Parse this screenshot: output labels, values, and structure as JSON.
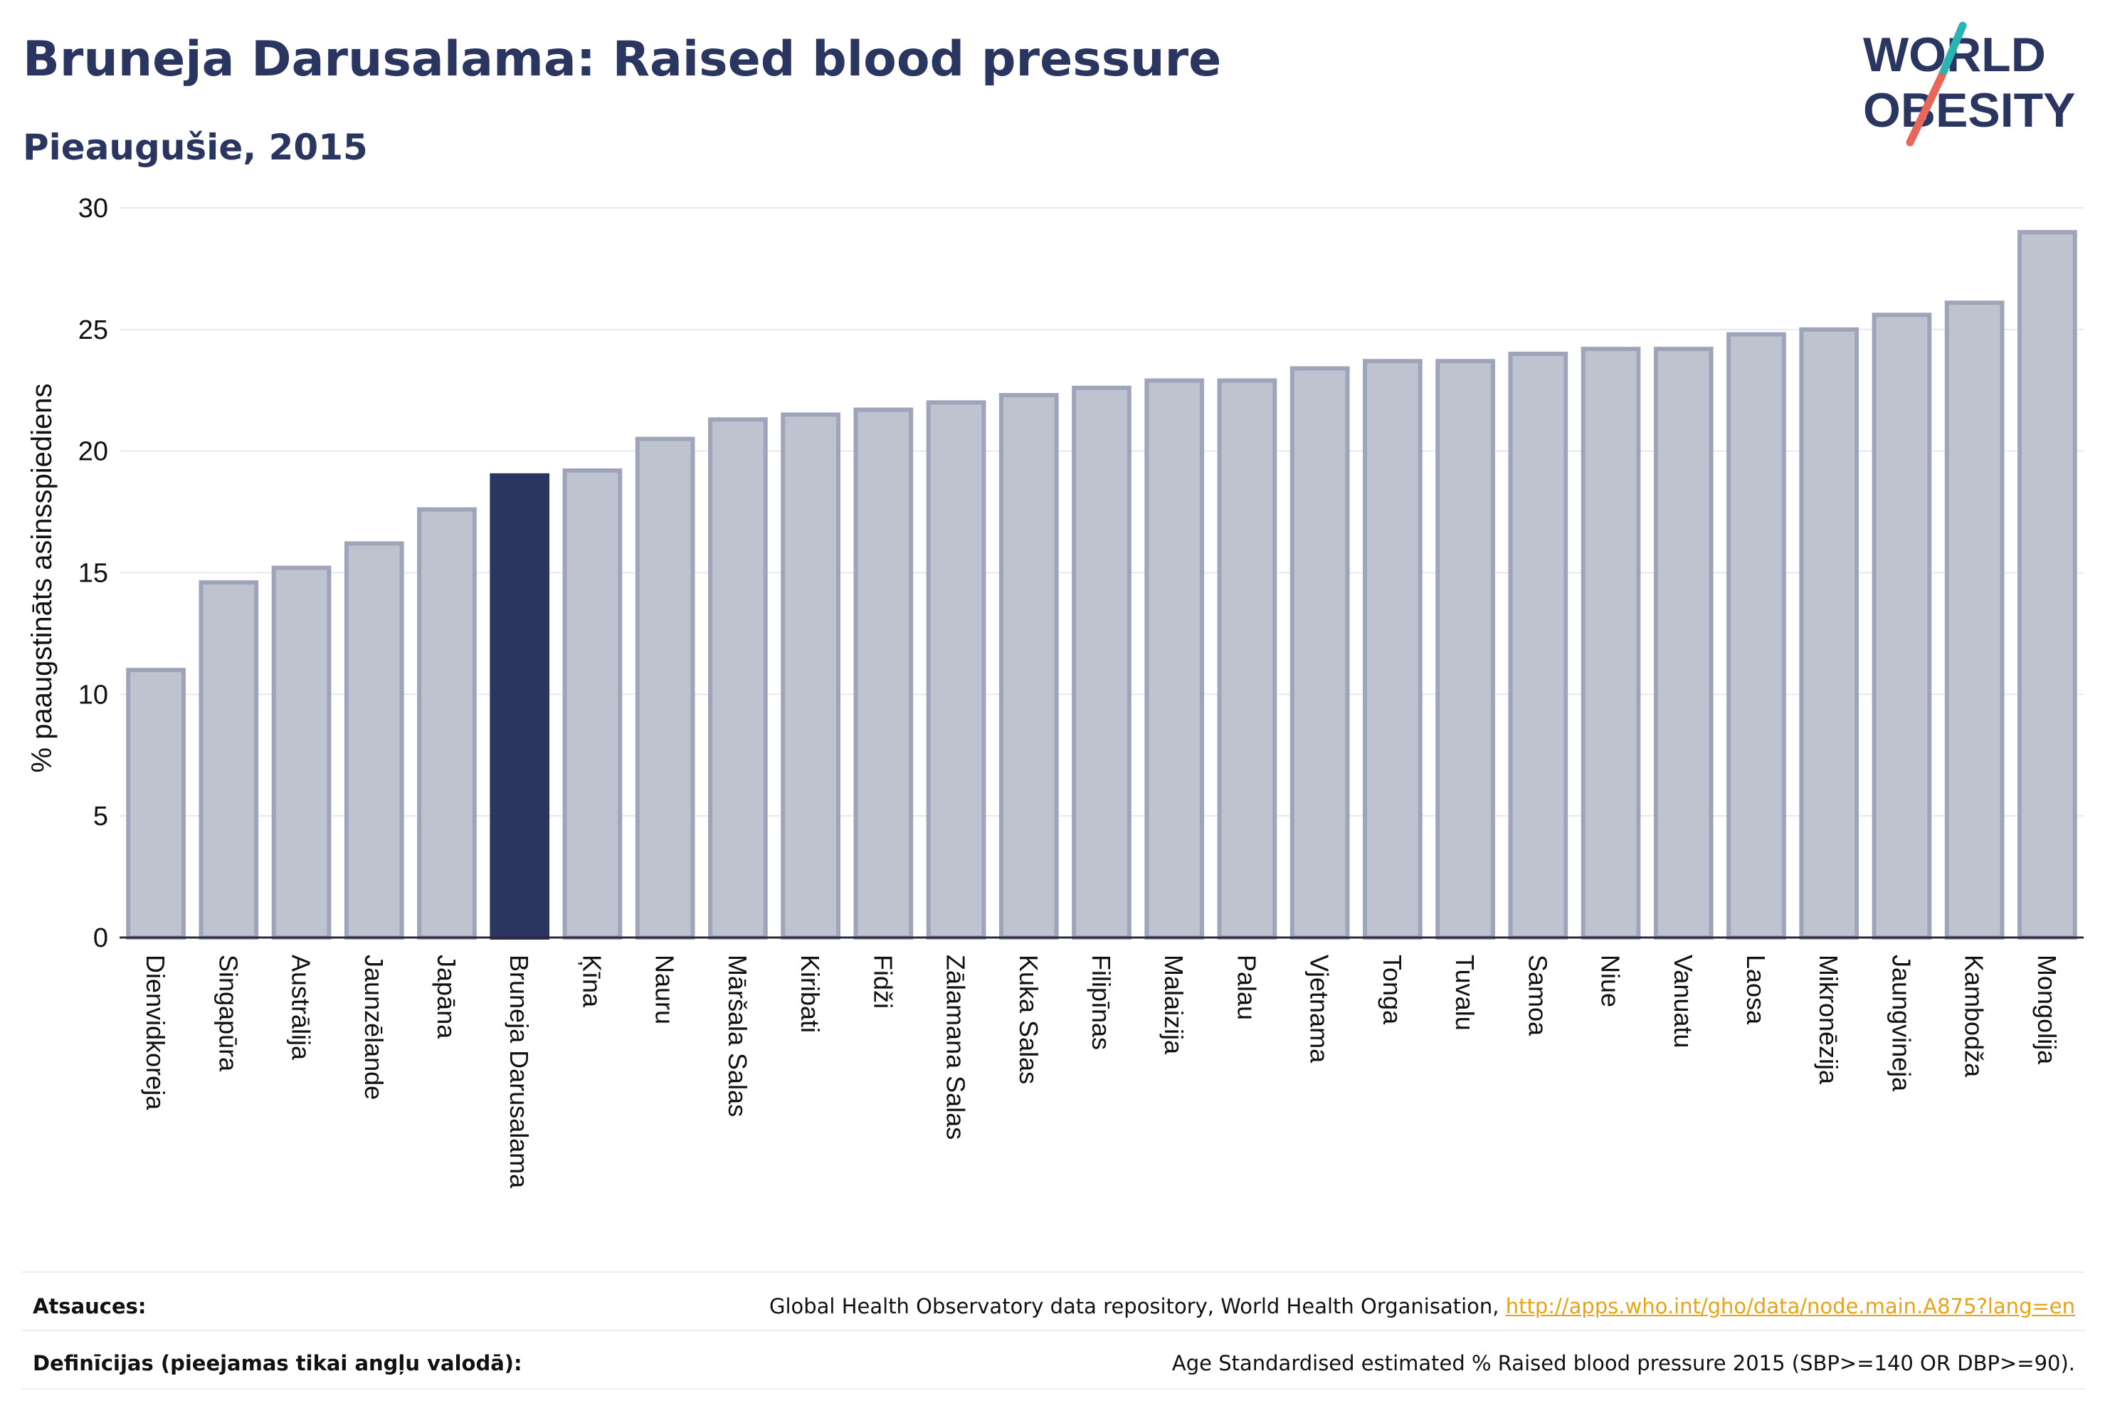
{
  "header": {
    "title": "Bruneja Darusalama: Raised blood pressure",
    "subtitle": "Pieaugušie, 2015"
  },
  "logo": {
    "line1": "WORLD",
    "line2": "OBESITY",
    "icon": "world-obesity-logo"
  },
  "colors": {
    "highlight_bar": "#2a3560",
    "bar_fill": "#bfc3cf",
    "bar_stroke": "#9ea4b9",
    "text": "#2a3560",
    "link": "#e8a317",
    "logo_teal": "#2bb3b1",
    "logo_red": "#e8665a"
  },
  "chart_data": {
    "type": "bar",
    "ylabel": "% paaugstināts asinsspiediens",
    "xlabel": "",
    "ylim": [
      0,
      30
    ],
    "yticks": [
      0,
      5,
      10,
      15,
      20,
      25,
      30
    ],
    "grid": true,
    "highlight": "Bruneja Darusalama",
    "categories": [
      "Dienvidkoreja",
      "Singapūra",
      "Austrālija",
      "Jaunzēlande",
      "Japāna",
      "Bruneja Darusalama",
      "Ķīna",
      "Nauru",
      "Māršala Salas",
      "Kiribati",
      "Fidži",
      "Zālamana Salas",
      "Kuka Salas",
      "Filipīnas",
      "Malaizija",
      "Palau",
      "Vjetnama",
      "Tonga",
      "Tuvalu",
      "Samoa",
      "Niue",
      "Vanuatu",
      "Laosa",
      "Mikronēzija",
      "Jaungvineja",
      "Kambodža",
      "Mongolija"
    ],
    "values": [
      11.0,
      14.6,
      15.2,
      16.2,
      17.6,
      19.0,
      19.2,
      20.5,
      21.3,
      21.5,
      21.7,
      22.0,
      22.3,
      22.6,
      22.9,
      22.9,
      23.4,
      23.7,
      23.7,
      24.0,
      24.2,
      24.2,
      24.8,
      25.0,
      25.6,
      26.1,
      29.0
    ]
  },
  "footer": {
    "sources_label": "Atsauces:",
    "sources_text": "Global Health Observatory data repository, World Health Organisation, ",
    "sources_link": "http://apps.who.int/gho/data/node.main.A875?lang=en",
    "definitions_label": "Definīcijas (pieejamas tikai angļu valodā):",
    "definitions_text": "Age Standardised estimated % Raised blood pressure 2015 (SBP>=140 OR DBP>=90)."
  }
}
